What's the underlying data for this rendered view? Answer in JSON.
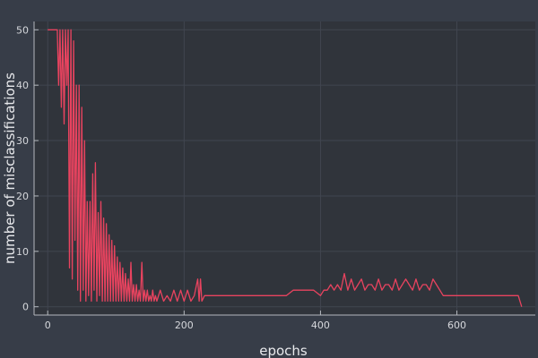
{
  "chart_data": {
    "type": "line",
    "title": "",
    "xlabel": "epochs",
    "ylabel": "number of misclassifications",
    "xlim": [
      -20,
      715
    ],
    "ylim": [
      -1.5,
      51.5
    ],
    "xticks": [
      0,
      200,
      400,
      600
    ],
    "yticks": [
      0,
      10,
      20,
      30,
      40,
      50
    ],
    "grid": true,
    "legend": "none",
    "colors": {
      "background": "#373d48",
      "plot_background": "#30343b",
      "grid": "#414650",
      "axis": "#b4b8be",
      "series": "#e8435f"
    },
    "series": [
      {
        "x": [
          0,
          5,
          10,
          14,
          16,
          18,
          20,
          22,
          24,
          26,
          28,
          30,
          32,
          34,
          36,
          38,
          40,
          42,
          44,
          46,
          48,
          50,
          52,
          54,
          56,
          58,
          60,
          62,
          64,
          66,
          68,
          70,
          72,
          74,
          76,
          78,
          80,
          82,
          84,
          86,
          88,
          90,
          92,
          94,
          96,
          98,
          100,
          102,
          104,
          106,
          108,
          110,
          112,
          114,
          116,
          118,
          120,
          122,
          124,
          126,
          128,
          130,
          132,
          134,
          136,
          138,
          140,
          142,
          144,
          146,
          148,
          150,
          152,
          154,
          156,
          158,
          160,
          165,
          170,
          175,
          180,
          185,
          190,
          195,
          200,
          205,
          210,
          215,
          220,
          222,
          224,
          226,
          230,
          240,
          250,
          260,
          270,
          280,
          290,
          300,
          310,
          320,
          330,
          340,
          350,
          360,
          370,
          380,
          390,
          400,
          405,
          410,
          415,
          420,
          425,
          430,
          435,
          440,
          445,
          450,
          455,
          460,
          465,
          470,
          475,
          480,
          485,
          490,
          495,
          500,
          505,
          510,
          515,
          520,
          525,
          530,
          535,
          540,
          545,
          550,
          555,
          560,
          565,
          570,
          580,
          590,
          600,
          610,
          620,
          630,
          640,
          650,
          660,
          670,
          680,
          685,
          690,
          695
        ],
        "y": [
          50,
          50,
          50,
          50,
          40,
          50,
          36,
          50,
          33,
          50,
          40,
          50,
          7,
          50,
          5,
          48,
          12,
          40,
          3,
          40,
          1,
          36,
          3,
          30,
          1,
          19,
          2,
          19,
          1,
          24,
          3,
          26,
          1,
          17,
          2,
          19,
          1,
          16,
          1,
          15,
          1,
          13,
          1,
          12,
          1,
          11,
          1,
          9,
          1,
          8,
          1,
          7,
          1,
          6,
          1,
          5,
          1,
          8,
          1,
          4,
          1,
          4,
          1,
          3,
          1,
          8,
          1,
          3,
          1,
          3,
          1,
          2,
          1,
          3,
          1,
          2,
          1,
          3,
          1,
          2,
          1,
          3,
          1,
          3,
          1,
          3,
          1,
          2,
          5,
          1,
          5,
          1,
          2,
          2,
          2,
          2,
          2,
          2,
          2,
          2,
          2,
          2,
          2,
          2,
          2,
          3,
          3,
          3,
          3,
          2,
          3,
          3,
          4,
          3,
          4,
          3,
          6,
          3,
          5,
          3,
          4,
          5,
          3,
          4,
          4,
          3,
          5,
          3,
          4,
          4,
          3,
          5,
          3,
          4,
          5,
          4,
          3,
          5,
          3,
          4,
          4,
          3,
          5,
          4,
          2,
          2,
          2,
          2,
          2,
          2,
          2,
          2,
          2,
          2,
          2,
          2,
          2,
          0
        ]
      }
    ]
  }
}
